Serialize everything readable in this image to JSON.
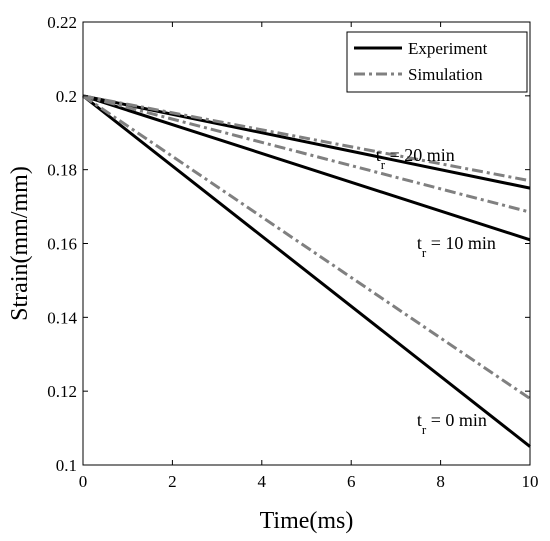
{
  "chart_data": {
    "type": "line",
    "title": "",
    "xlabel": "Time(ms)",
    "ylabel": "Strain(mm/mm)",
    "xlim": [
      0,
      10
    ],
    "ylim": [
      0.1,
      0.22
    ],
    "xticks": [
      0,
      2,
      4,
      6,
      8,
      10
    ],
    "xtick_labels": [
      "0",
      "2",
      "4",
      "6",
      "8",
      "10"
    ],
    "yticks": [
      0.1,
      0.12,
      0.14,
      0.16,
      0.18,
      0.2,
      0.22
    ],
    "ytick_labels": [
      "0.1",
      "0.12",
      "0.14",
      "0.16",
      "0.18",
      "0.2",
      "0.22"
    ],
    "grid": false,
    "legend": {
      "placement": "top-right",
      "entries": [
        {
          "label": "Experiment",
          "color": "#000000",
          "style": "solid"
        },
        {
          "label": "Simulation",
          "color": "#808080",
          "style": "dash-dot"
        }
      ]
    },
    "series": [
      {
        "legend": "Experiment",
        "case": "t_r = 20 min",
        "color": "#000000",
        "style": "solid",
        "x": [
          0,
          10
        ],
        "y": [
          0.2,
          0.175
        ]
      },
      {
        "legend": "Simulation",
        "case": "t_r = 20 min",
        "color": "#808080",
        "style": "dash-dot",
        "x": [
          0,
          10
        ],
        "y": [
          0.2,
          0.177
        ]
      },
      {
        "legend": "Experiment",
        "case": "t_r = 10 min",
        "color": "#000000",
        "style": "solid",
        "x": [
          0,
          10
        ],
        "y": [
          0.2,
          0.161
        ]
      },
      {
        "legend": "Simulation",
        "case": "t_r = 10 min",
        "color": "#808080",
        "style": "dash-dot",
        "x": [
          0,
          10
        ],
        "y": [
          0.2,
          0.1685
        ]
      },
      {
        "legend": "Experiment",
        "case": "t_r = 0 min",
        "color": "#000000",
        "style": "solid",
        "x": [
          0,
          10
        ],
        "y": [
          0.2,
          0.105
        ]
      },
      {
        "legend": "Simulation",
        "case": "t_r = 0 min",
        "color": "#808080",
        "style": "dash-dot",
        "x": [
          0,
          10
        ],
        "y": [
          0.2,
          0.118
        ]
      }
    ],
    "annotations": [
      {
        "main": "t",
        "sub": "r",
        "rest": " = 20 min",
        "x": 6.55,
        "y": 0.1823
      },
      {
        "main": "t",
        "sub": "r",
        "rest": " = 10 min",
        "x": 7.47,
        "y": 0.1585
      },
      {
        "main": "t",
        "sub": "r",
        "rest": " = 0 min",
        "x": 7.47,
        "y": 0.1105
      }
    ]
  }
}
